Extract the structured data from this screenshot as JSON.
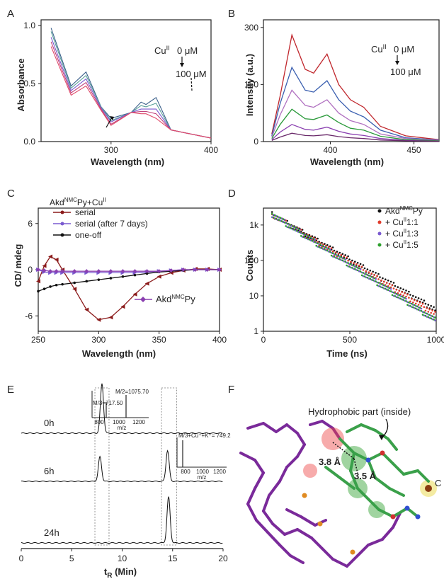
{
  "panels": {
    "A": {
      "label": "A",
      "ylabel": "Absorbance",
      "xlabel": "Wavelength (nm)",
      "yticks": [
        "0.0",
        "0.5",
        "1.0"
      ],
      "xticks": [
        "300",
        "400"
      ],
      "annotation": {
        "ion": "Cu",
        "sup": "II",
        "from": "0 μM",
        "to": "100 μM"
      }
    },
    "B": {
      "label": "B",
      "ylabel": "Intensity (a.u.)",
      "xlabel": "Wavelength (nm)",
      "yticks": [
        "0",
        "150",
        "300"
      ],
      "xticks": [
        "400",
        "450"
      ],
      "annotation": {
        "ion": "Cu",
        "sup": "II",
        "from": "0 μM",
        "to": "100 μM"
      }
    },
    "C": {
      "label": "C",
      "ylabel": "CD/ mdeg",
      "xlabel": "Wavelength (nm)",
      "yticks": [
        "6",
        "0",
        "-6"
      ],
      "xticks": [
        "250",
        "300",
        "350",
        "400"
      ],
      "title_main": "Akd",
      "title_sup": "NMC",
      "title_rest": "Py+Cu",
      "title_sup2": "II",
      "legend": [
        "serial",
        "serial (after 7 days)",
        "one-off"
      ],
      "inset_legend": {
        "main": "Akd",
        "sup": "NMC",
        "rest": "Py"
      }
    },
    "D": {
      "label": "D",
      "ylabel": "Counts",
      "xlabel": "Time (ns)",
      "yticks": [
        "1k",
        "100",
        "10",
        "1"
      ],
      "xticks": [
        "0",
        "500",
        "1000"
      ],
      "legend": [
        {
          "main": "Akd",
          "sup": "NMC",
          "rest": "Py"
        },
        {
          "main": "+ Cu",
          "sup": "II",
          "rest": "1:1"
        },
        {
          "main": "+ Cu",
          "sup": "II",
          "rest": "1:3"
        },
        {
          "main": "+ Cu",
          "sup": "II",
          "rest": "1:5"
        }
      ]
    },
    "E": {
      "label": "E",
      "xlabel_main": "t",
      "xlabel_sub": "R",
      "xlabel_rest": " (Min)",
      "xticks": [
        "0",
        "5",
        "10",
        "15",
        "20"
      ],
      "traces": [
        "0h",
        "6h",
        "24h"
      ],
      "inset1": {
        "m2": "M/2=1075.70",
        "m3": "M/3=717.50",
        "ticks": [
          "800",
          "1000",
          "1200"
        ],
        "xlabel": "m/z"
      },
      "inset2": {
        "label": "M/3+Cu⁺+K⁺= 749.2",
        "ticks": [
          "800",
          "1000",
          "1200"
        ],
        "xlabel": "m/z"
      }
    },
    "F": {
      "label": "F",
      "title": "Hydrophobic part (inside)",
      "dist1": "3.8 Å",
      "dist2": "3.5 Å",
      "metal": "C"
    }
  },
  "colors": {
    "purple": "#8a3fb0",
    "maroon": "#8b1a1a",
    "red": "#e03a2a",
    "green": "#2ca02c",
    "blue": "#3050a0",
    "black": "#111111",
    "lightpurple": "#7a5ad0"
  },
  "chart_data": [
    {
      "type": "line",
      "panel": "A",
      "x": [
        240,
        260,
        275,
        290,
        300,
        320,
        330,
        335,
        345,
        360,
        400
      ],
      "series": [
        {
          "values": [
            0.98,
            0.48,
            0.6,
            0.3,
            0.2,
            0.25,
            0.34,
            0.32,
            0.38,
            0.1,
            0.03
          ]
        },
        {
          "values": [
            0.95,
            0.46,
            0.57,
            0.3,
            0.18,
            0.25,
            0.31,
            0.3,
            0.33,
            0.1,
            0.03
          ]
        },
        {
          "values": [
            0.9,
            0.44,
            0.54,
            0.29,
            0.17,
            0.25,
            0.28,
            0.28,
            0.28,
            0.1,
            0.03
          ]
        },
        {
          "values": [
            0.86,
            0.42,
            0.51,
            0.28,
            0.15,
            0.25,
            0.26,
            0.26,
            0.24,
            0.1,
            0.03
          ]
        },
        {
          "values": [
            0.82,
            0.4,
            0.48,
            0.27,
            0.14,
            0.25,
            0.24,
            0.24,
            0.2,
            0.1,
            0.03
          ]
        }
      ],
      "xlim": [
        230,
        400
      ],
      "ylim": [
        0,
        1.05
      ]
    },
    {
      "type": "line",
      "panel": "B",
      "x": [
        365,
        370,
        377,
        385,
        390,
        398,
        405,
        412,
        420,
        430,
        445,
        465
      ],
      "series": [
        {
          "values": [
            20,
            120,
            280,
            190,
            180,
            230,
            150,
            110,
            90,
            40,
            15,
            5
          ]
        },
        {
          "values": [
            15,
            100,
            195,
            135,
            130,
            160,
            110,
            80,
            65,
            30,
            10,
            4
          ]
        },
        {
          "values": [
            12,
            70,
            135,
            95,
            90,
            110,
            75,
            55,
            45,
            20,
            8,
            3
          ]
        },
        {
          "values": [
            8,
            45,
            85,
            60,
            58,
            70,
            50,
            35,
            30,
            14,
            5,
            2
          ]
        },
        {
          "values": [
            5,
            25,
            45,
            32,
            30,
            38,
            27,
            20,
            16,
            8,
            3,
            1
          ]
        },
        {
          "values": [
            3,
            12,
            22,
            16,
            15,
            18,
            13,
            10,
            8,
            4,
            2,
            1
          ]
        }
      ],
      "xlim": [
        360,
        465
      ],
      "ylim": [
        0,
        320
      ]
    },
    {
      "type": "line",
      "panel": "C",
      "x": [
        250,
        255,
        260,
        265,
        270,
        280,
        290,
        300,
        310,
        320,
        330,
        340,
        350,
        360,
        370,
        380,
        390,
        400
      ],
      "series": [
        {
          "name": "serial",
          "values": [
            -1.5,
            0.5,
            1.7,
            1.3,
            0.0,
            -2.5,
            -5.2,
            -6.5,
            -6.2,
            -4.8,
            -3.2,
            -1.8,
            -0.9,
            -0.4,
            -0.1,
            0.1,
            0.1,
            0.0
          ]
        },
        {
          "name": "serial (after 7 days)",
          "values": [
            0.0,
            -0.3,
            -0.4,
            -0.4,
            -0.4,
            -0.4,
            -0.4,
            -0.4,
            -0.4,
            -0.4,
            -0.4,
            -0.3,
            -0.2,
            -0.1,
            0.0,
            0.0,
            0.0,
            0.0
          ]
        },
        {
          "name": "one-off",
          "values": [
            -2.8,
            -2.5,
            -2.2,
            -2.0,
            -1.9,
            -1.7,
            -1.5,
            -1.3,
            -1.1,
            -0.9,
            -0.7,
            -0.5,
            -0.3,
            -0.2,
            -0.1,
            0.0,
            0.0,
            0.0
          ]
        },
        {
          "name": "Akd NMC Py",
          "values": [
            0.0,
            -0.1,
            -0.2,
            -0.2,
            -0.2,
            -0.2,
            -0.2,
            -0.2,
            -0.2,
            -0.2,
            -0.2,
            -0.2,
            -0.2,
            -0.1,
            0.0,
            0.0,
            0.0,
            0.0
          ]
        }
      ],
      "xlim": [
        250,
        400
      ],
      "ylim": [
        -8,
        8
      ]
    },
    {
      "type": "scatter",
      "panel": "D",
      "x": [
        50,
        200,
        400,
        600,
        800,
        1000
      ],
      "series": [
        {
          "name": "Akd NMC Py",
          "values": [
            2000,
            600,
            150,
            40,
            12,
            4
          ]
        },
        {
          "name": "+ Cu II 1:1",
          "values": [
            2000,
            580,
            140,
            36,
            10,
            3
          ]
        },
        {
          "name": "+ Cu II 1:3",
          "values": [
            2000,
            550,
            120,
            30,
            8,
            2
          ]
        },
        {
          "name": "+ Cu II 1:5",
          "values": [
            2000,
            520,
            110,
            26,
            7,
            2
          ]
        }
      ],
      "xlim": [
        0,
        1000
      ],
      "ylim": [
        1,
        3000
      ],
      "yscale": "log"
    },
    {
      "type": "line",
      "panel": "E",
      "series": [
        {
          "name": "0h",
          "peaks": [
            {
              "x": 8.0,
              "height": 1.0
            }
          ]
        },
        {
          "name": "6h",
          "peaks": [
            {
              "x": 7.8,
              "height": 0.6
            },
            {
              "x": 14.5,
              "height": 0.75
            }
          ]
        },
        {
          "name": "24h",
          "peaks": [
            {
              "x": 14.6,
              "height": 0.9
            }
          ]
        }
      ],
      "xlim": [
        0,
        20
      ]
    }
  ]
}
